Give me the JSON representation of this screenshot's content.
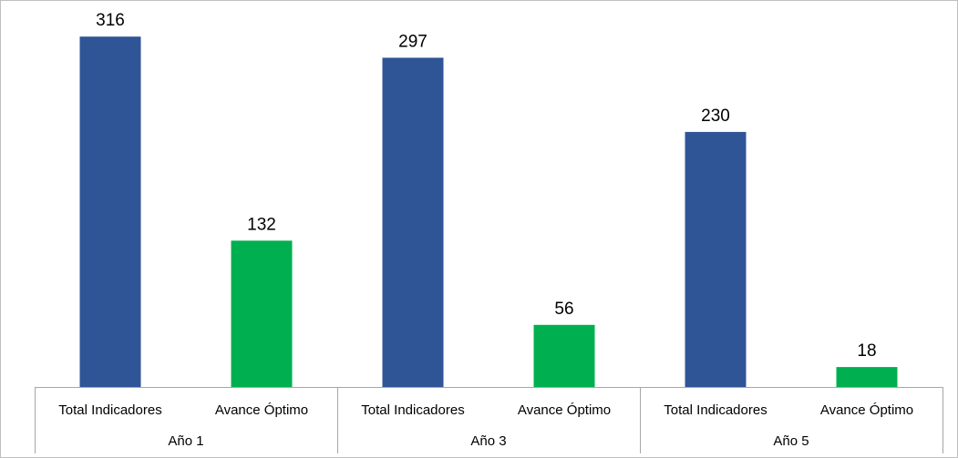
{
  "chart_data": {
    "type": "bar",
    "groups": [
      "Año 1",
      "Año 3",
      "Año 5"
    ],
    "sub_categories": [
      "Total Indicadores",
      "Avance Óptimo"
    ],
    "series": [
      {
        "values": [
          316,
          297,
          230
        ],
        "color": "#2f5597"
      },
      {
        "values": [
          132,
          56,
          18
        ],
        "color": "#00b050"
      }
    ],
    "ylim": [
      0,
      340
    ],
    "grid": false,
    "legend": false,
    "data_labels": true
  }
}
